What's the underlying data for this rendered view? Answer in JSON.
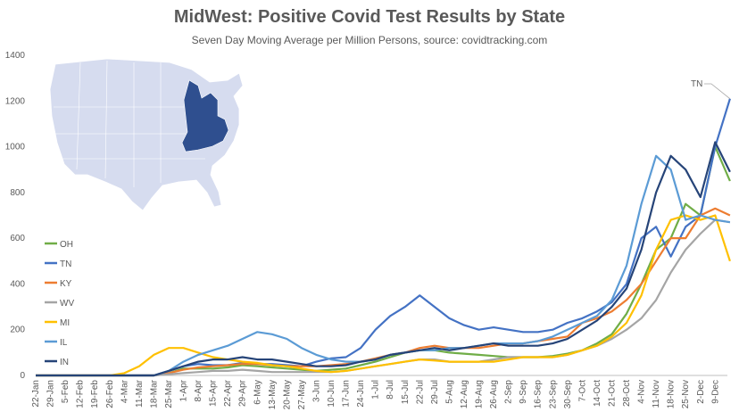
{
  "chart_data": {
    "type": "line",
    "title": "MidWest: Positive Covid Test Results by State",
    "subtitle": "Seven Day Moving  Average per Million Persons, source: covidtracking.com",
    "xlabel": "",
    "ylabel": "",
    "ylim": [
      0,
      1400
    ],
    "yticks": [
      0,
      200,
      400,
      600,
      800,
      1000,
      1200,
      1400
    ],
    "grid": false,
    "legend_position": "left",
    "x_tick_labels": [
      "22-Jan",
      "29-Jan",
      "5-Feb",
      "12-Feb",
      "19-Feb",
      "26-Feb",
      "4-Mar",
      "11-Mar",
      "18-Mar",
      "25-Mar",
      "1-Apr",
      "8-Apr",
      "15-Apr",
      "22-Apr",
      "29-Apr",
      "6-May",
      "13-May",
      "20-May",
      "27-May",
      "3-Jun",
      "10-Jun",
      "17-Jun",
      "24-Jun",
      "1-Jul",
      "8-Jul",
      "15-Jul",
      "22-Jul",
      "29-Jul",
      "5-Aug",
      "12-Aug",
      "19-Aug",
      "26-Aug",
      "2-Sep",
      "9-Sep",
      "16-Sep",
      "23-Sep",
      "30-Sep",
      "7-Oct",
      "14-Oct",
      "21-Oct",
      "28-Oct",
      "4-Nov",
      "11-Nov",
      "18-Nov",
      "25-Nov",
      "2-Dec",
      "9-Dec"
    ],
    "annotation": "TN",
    "series": [
      {
        "name": "OH",
        "color": "#70ad47",
        "values": [
          0,
          0,
          0,
          0,
          0,
          0,
          0,
          0,
          0,
          10,
          30,
          30,
          30,
          35,
          45,
          40,
          35,
          30,
          25,
          20,
          25,
          30,
          45,
          60,
          80,
          100,
          110,
          110,
          100,
          95,
          90,
          85,
          80,
          80,
          80,
          85,
          95,
          110,
          140,
          180,
          270,
          400,
          550,
          600,
          750,
          700,
          1000,
          850
        ]
      },
      {
        "name": "TN",
        "color": "#4472c4",
        "values": [
          0,
          0,
          0,
          0,
          0,
          0,
          0,
          0,
          0,
          20,
          40,
          50,
          45,
          45,
          55,
          50,
          50,
          45,
          40,
          60,
          75,
          80,
          120,
          200,
          260,
          300,
          350,
          300,
          250,
          220,
          200,
          210,
          200,
          190,
          190,
          200,
          230,
          250,
          280,
          320,
          400,
          600,
          650,
          520,
          650,
          700,
          1000,
          1210
        ]
      },
      {
        "name": "KY",
        "color": "#ed7d31",
        "values": [
          0,
          0,
          0,
          0,
          0,
          0,
          0,
          0,
          0,
          10,
          25,
          35,
          40,
          45,
          50,
          50,
          45,
          40,
          40,
          40,
          45,
          50,
          60,
          75,
          90,
          100,
          120,
          130,
          120,
          120,
          120,
          130,
          140,
          140,
          150,
          160,
          170,
          230,
          250,
          280,
          330,
          400,
          500,
          600,
          600,
          700,
          730,
          700
        ]
      },
      {
        "name": "WV",
        "color": "#a5a5a5",
        "values": [
          0,
          0,
          0,
          0,
          0,
          0,
          0,
          0,
          0,
          5,
          10,
          15,
          20,
          20,
          25,
          20,
          15,
          15,
          15,
          15,
          15,
          20,
          30,
          40,
          50,
          60,
          70,
          70,
          60,
          60,
          60,
          70,
          80,
          80,
          80,
          80,
          90,
          110,
          130,
          160,
          200,
          250,
          330,
          450,
          550,
          620,
          680,
          670
        ]
      },
      {
        "name": "MI",
        "color": "#ffc000",
        "values": [
          0,
          0,
          0,
          0,
          0,
          0,
          10,
          40,
          90,
          120,
          120,
          100,
          80,
          70,
          60,
          55,
          45,
          40,
          30,
          20,
          15,
          20,
          30,
          40,
          50,
          60,
          70,
          65,
          60,
          60,
          60,
          60,
          70,
          80,
          80,
          80,
          90,
          110,
          130,
          170,
          230,
          350,
          550,
          680,
          700,
          680,
          700,
          500
        ]
      },
      {
        "name": "IL",
        "color": "#5b9bd5",
        "values": [
          0,
          0,
          0,
          0,
          0,
          0,
          0,
          0,
          0,
          20,
          60,
          90,
          110,
          130,
          160,
          190,
          180,
          160,
          120,
          90,
          70,
          60,
          60,
          70,
          90,
          100,
          110,
          110,
          120,
          120,
          130,
          140,
          140,
          140,
          150,
          170,
          200,
          230,
          260,
          330,
          480,
          750,
          960,
          900,
          680,
          700,
          680,
          670
        ]
      },
      {
        "name": "IN",
        "color": "#264478",
        "values": [
          0,
          0,
          0,
          0,
          0,
          0,
          0,
          0,
          0,
          20,
          40,
          60,
          70,
          70,
          80,
          70,
          70,
          60,
          50,
          40,
          40,
          45,
          60,
          70,
          90,
          100,
          110,
          120,
          110,
          120,
          130,
          140,
          130,
          130,
          130,
          140,
          160,
          200,
          240,
          300,
          380,
          550,
          800,
          960,
          900,
          780,
          1020,
          890
        ]
      }
    ]
  },
  "map": {
    "highlight_color": "#2f4f8f",
    "base_color": "#d6dcef"
  }
}
